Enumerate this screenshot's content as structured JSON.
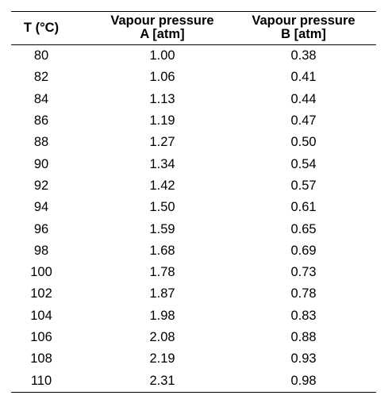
{
  "table": {
    "headers": {
      "temperature": "T (°C)",
      "pressure_a_line1": "Vapour pressure",
      "pressure_a_line2": "A [atm]",
      "pressure_b_line1": "Vapour pressure",
      "pressure_b_line2": "B [atm]"
    },
    "rows": [
      {
        "t": "80",
        "a": "1.00",
        "b": "0.38"
      },
      {
        "t": "82",
        "a": "1.06",
        "b": "0.41"
      },
      {
        "t": "84",
        "a": "1.13",
        "b": "0.44"
      },
      {
        "t": "86",
        "a": "1.19",
        "b": "0.47"
      },
      {
        "t": "88",
        "a": "1.27",
        "b": "0.50"
      },
      {
        "t": "90",
        "a": "1.34",
        "b": "0.54"
      },
      {
        "t": "92",
        "a": "1.42",
        "b": "0.57"
      },
      {
        "t": "94",
        "a": "1.50",
        "b": "0.61"
      },
      {
        "t": "96",
        "a": "1.59",
        "b": "0.65"
      },
      {
        "t": "98",
        "a": "1.68",
        "b": "0.69"
      },
      {
        "t": "100",
        "a": "1.78",
        "b": "0.73"
      },
      {
        "t": "102",
        "a": "1.87",
        "b": "0.78"
      },
      {
        "t": "104",
        "a": "1.98",
        "b": "0.83"
      },
      {
        "t": "106",
        "a": "2.08",
        "b": "0.88"
      },
      {
        "t": "108",
        "a": "2.19",
        "b": "0.93"
      },
      {
        "t": "110",
        "a": "2.31",
        "b": "0.98"
      }
    ]
  }
}
